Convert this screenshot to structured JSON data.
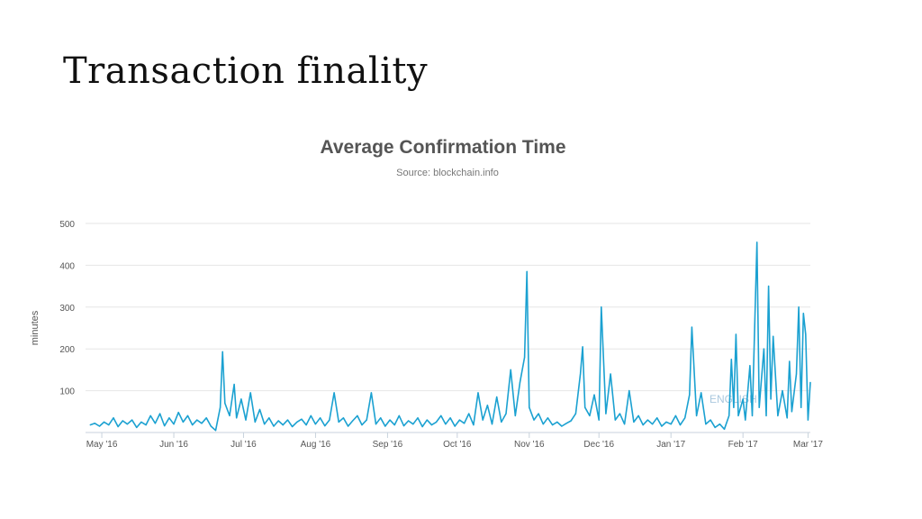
{
  "slide": {
    "title": "Transaction finality"
  },
  "chart_data": {
    "type": "line",
    "title": "Average Confirmation Time",
    "subtitle": "Source: blockchain.info",
    "ylabel": "minutes",
    "xlabel": "",
    "ylim": [
      0,
      500
    ],
    "xlim": [
      "2016-04-24",
      "2017-03-02"
    ],
    "yticks": [
      100,
      200,
      300,
      400,
      500
    ],
    "xticks": [
      {
        "label": "May '16",
        "date": "2016-05-01"
      },
      {
        "label": "Jun '16",
        "date": "2016-06-01"
      },
      {
        "label": "Jul '16",
        "date": "2016-07-01"
      },
      {
        "label": "Aug '16",
        "date": "2016-08-01"
      },
      {
        "label": "Sep '16",
        "date": "2016-09-01"
      },
      {
        "label": "Oct '16",
        "date": "2016-10-01"
      },
      {
        "label": "Nov '16",
        "date": "2016-11-01"
      },
      {
        "label": "Dec '16",
        "date": "2016-12-01"
      },
      {
        "label": "Jan '17",
        "date": "2017-01-01"
      },
      {
        "label": "Feb '17",
        "date": "2017-02-01"
      },
      {
        "label": "Mar '17",
        "date": "2017-03-01"
      }
    ],
    "grid": true,
    "line_color": "#1ba1d1",
    "watermark": "ENGLISH",
    "series": [
      {
        "name": "",
        "points": [
          [
            "2016-04-26",
            18
          ],
          [
            "2016-04-28",
            22
          ],
          [
            "2016-04-30",
            15
          ],
          [
            "2016-05-02",
            25
          ],
          [
            "2016-05-04",
            18
          ],
          [
            "2016-05-06",
            35
          ],
          [
            "2016-05-08",
            14
          ],
          [
            "2016-05-10",
            28
          ],
          [
            "2016-05-12",
            20
          ],
          [
            "2016-05-14",
            30
          ],
          [
            "2016-05-16",
            12
          ],
          [
            "2016-05-18",
            25
          ],
          [
            "2016-05-20",
            18
          ],
          [
            "2016-05-22",
            40
          ],
          [
            "2016-05-24",
            22
          ],
          [
            "2016-05-26",
            45
          ],
          [
            "2016-05-28",
            16
          ],
          [
            "2016-05-30",
            35
          ],
          [
            "2016-06-01",
            20
          ],
          [
            "2016-06-03",
            48
          ],
          [
            "2016-06-05",
            25
          ],
          [
            "2016-06-07",
            40
          ],
          [
            "2016-06-09",
            18
          ],
          [
            "2016-06-11",
            30
          ],
          [
            "2016-06-13",
            22
          ],
          [
            "2016-06-15",
            35
          ],
          [
            "2016-06-17",
            15
          ],
          [
            "2016-06-19",
            5
          ],
          [
            "2016-06-21",
            60
          ],
          [
            "2016-06-22",
            193
          ],
          [
            "2016-06-23",
            70
          ],
          [
            "2016-06-25",
            40
          ],
          [
            "2016-06-27",
            115
          ],
          [
            "2016-06-28",
            35
          ],
          [
            "2016-06-30",
            80
          ],
          [
            "2016-07-02",
            30
          ],
          [
            "2016-07-04",
            95
          ],
          [
            "2016-07-06",
            25
          ],
          [
            "2016-07-08",
            55
          ],
          [
            "2016-07-10",
            20
          ],
          [
            "2016-07-12",
            35
          ],
          [
            "2016-07-14",
            15
          ],
          [
            "2016-07-16",
            28
          ],
          [
            "2016-07-18",
            18
          ],
          [
            "2016-07-20",
            30
          ],
          [
            "2016-07-22",
            14
          ],
          [
            "2016-07-24",
            25
          ],
          [
            "2016-07-26",
            32
          ],
          [
            "2016-07-28",
            18
          ],
          [
            "2016-07-30",
            40
          ],
          [
            "2016-08-01",
            20
          ],
          [
            "2016-08-03",
            35
          ],
          [
            "2016-08-05",
            16
          ],
          [
            "2016-08-07",
            30
          ],
          [
            "2016-08-09",
            95
          ],
          [
            "2016-08-11",
            25
          ],
          [
            "2016-08-13",
            35
          ],
          [
            "2016-08-15",
            15
          ],
          [
            "2016-08-17",
            28
          ],
          [
            "2016-08-19",
            40
          ],
          [
            "2016-08-21",
            18
          ],
          [
            "2016-08-23",
            30
          ],
          [
            "2016-08-25",
            95
          ],
          [
            "2016-08-27",
            20
          ],
          [
            "2016-08-29",
            35
          ],
          [
            "2016-08-31",
            15
          ],
          [
            "2016-09-02",
            30
          ],
          [
            "2016-09-04",
            18
          ],
          [
            "2016-09-06",
            40
          ],
          [
            "2016-09-08",
            16
          ],
          [
            "2016-09-10",
            28
          ],
          [
            "2016-09-12",
            20
          ],
          [
            "2016-09-14",
            35
          ],
          [
            "2016-09-16",
            14
          ],
          [
            "2016-09-18",
            30
          ],
          [
            "2016-09-20",
            18
          ],
          [
            "2016-09-22",
            25
          ],
          [
            "2016-09-24",
            40
          ],
          [
            "2016-09-26",
            20
          ],
          [
            "2016-09-28",
            35
          ],
          [
            "2016-09-30",
            15
          ],
          [
            "2016-10-02",
            30
          ],
          [
            "2016-10-04",
            22
          ],
          [
            "2016-10-06",
            45
          ],
          [
            "2016-10-08",
            18
          ],
          [
            "2016-10-10",
            95
          ],
          [
            "2016-10-12",
            30
          ],
          [
            "2016-10-14",
            65
          ],
          [
            "2016-10-16",
            20
          ],
          [
            "2016-10-18",
            85
          ],
          [
            "2016-10-20",
            25
          ],
          [
            "2016-10-22",
            45
          ],
          [
            "2016-10-24",
            150
          ],
          [
            "2016-10-26",
            40
          ],
          [
            "2016-10-28",
            120
          ],
          [
            "2016-10-30",
            180
          ],
          [
            "2016-10-31",
            385
          ],
          [
            "2016-11-01",
            60
          ],
          [
            "2016-11-03",
            30
          ],
          [
            "2016-11-05",
            45
          ],
          [
            "2016-11-07",
            20
          ],
          [
            "2016-11-09",
            35
          ],
          [
            "2016-11-11",
            18
          ],
          [
            "2016-11-13",
            25
          ],
          [
            "2016-11-15",
            15
          ],
          [
            "2016-11-17",
            22
          ],
          [
            "2016-11-19",
            28
          ],
          [
            "2016-11-21",
            45
          ],
          [
            "2016-11-23",
            140
          ],
          [
            "2016-11-24",
            205
          ],
          [
            "2016-11-25",
            60
          ],
          [
            "2016-11-27",
            40
          ],
          [
            "2016-11-29",
            90
          ],
          [
            "2016-12-01",
            30
          ],
          [
            "2016-12-02",
            300
          ],
          [
            "2016-12-04",
            45
          ],
          [
            "2016-12-06",
            140
          ],
          [
            "2016-12-08",
            30
          ],
          [
            "2016-12-10",
            45
          ],
          [
            "2016-12-12",
            20
          ],
          [
            "2016-12-14",
            100
          ],
          [
            "2016-12-16",
            25
          ],
          [
            "2016-12-18",
            40
          ],
          [
            "2016-12-20",
            18
          ],
          [
            "2016-12-22",
            30
          ],
          [
            "2016-12-24",
            20
          ],
          [
            "2016-12-26",
            35
          ],
          [
            "2016-12-28",
            15
          ],
          [
            "2016-12-30",
            25
          ],
          [
            "2017-01-01",
            20
          ],
          [
            "2017-01-03",
            40
          ],
          [
            "2017-01-05",
            18
          ],
          [
            "2017-01-07",
            35
          ],
          [
            "2017-01-09",
            90
          ],
          [
            "2017-01-10",
            252
          ],
          [
            "2017-01-12",
            40
          ],
          [
            "2017-01-14",
            95
          ],
          [
            "2017-01-16",
            20
          ],
          [
            "2017-01-18",
            30
          ],
          [
            "2017-01-20",
            12
          ],
          [
            "2017-01-22",
            20
          ],
          [
            "2017-01-24",
            8
          ],
          [
            "2017-01-26",
            40
          ],
          [
            "2017-01-27",
            175
          ],
          [
            "2017-01-28",
            60
          ],
          [
            "2017-01-29",
            235
          ],
          [
            "2017-01-30",
            40
          ],
          [
            "2017-02-01",
            80
          ],
          [
            "2017-02-02",
            30
          ],
          [
            "2017-02-04",
            160
          ],
          [
            "2017-02-05",
            40
          ],
          [
            "2017-02-07",
            455
          ],
          [
            "2017-02-08",
            60
          ],
          [
            "2017-02-10",
            200
          ],
          [
            "2017-02-11",
            40
          ],
          [
            "2017-02-12",
            350
          ],
          [
            "2017-02-13",
            80
          ],
          [
            "2017-02-14",
            230
          ],
          [
            "2017-02-16",
            40
          ],
          [
            "2017-02-18",
            100
          ],
          [
            "2017-02-20",
            35
          ],
          [
            "2017-02-21",
            170
          ],
          [
            "2017-02-22",
            50
          ],
          [
            "2017-02-24",
            140
          ],
          [
            "2017-02-25",
            300
          ],
          [
            "2017-02-26",
            60
          ],
          [
            "2017-02-27",
            285
          ],
          [
            "2017-02-28",
            235
          ],
          [
            "2017-03-01",
            30
          ],
          [
            "2017-03-02",
            120
          ]
        ]
      }
    ]
  }
}
